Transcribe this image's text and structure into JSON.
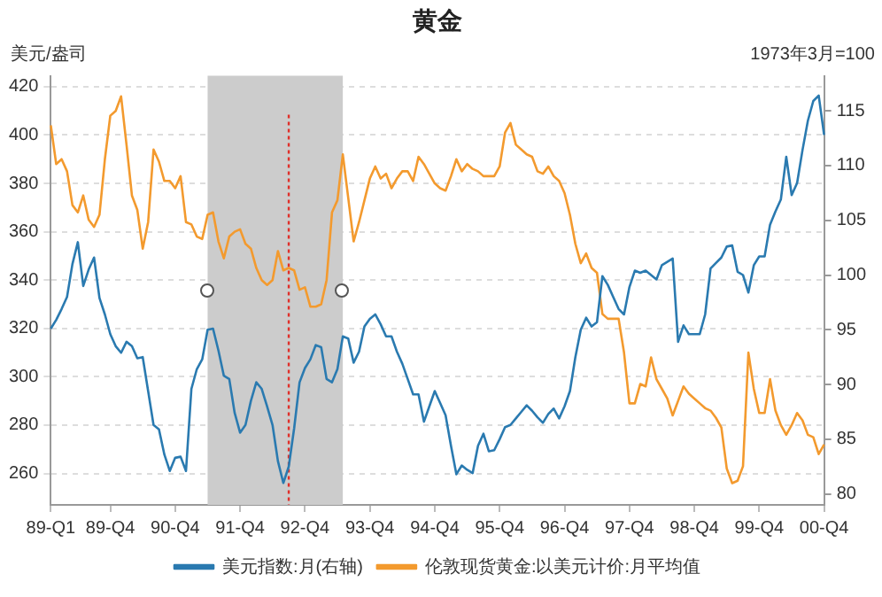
{
  "chart_data": {
    "type": "line",
    "title": "黄金",
    "ylabel": "美元/盎司",
    "y2label": "1973年3月=100",
    "categories": [
      "89-Q1",
      null,
      null,
      null,
      null,
      null,
      null,
      null,
      null,
      null,
      null,
      "89-Q4",
      null,
      null,
      null,
      null,
      null,
      null,
      null,
      null,
      null,
      null,
      null,
      "90-Q4",
      null,
      null,
      null,
      null,
      null,
      null,
      null,
      null,
      null,
      null,
      null,
      "91-Q4",
      null,
      null,
      null,
      null,
      null,
      null,
      null,
      null,
      null,
      null,
      null,
      "92-Q4",
      null,
      null,
      null,
      null,
      null,
      null,
      null,
      null,
      null,
      null,
      null,
      "93-Q4",
      null,
      null,
      null,
      null,
      null,
      null,
      null,
      null,
      null,
      null,
      null,
      "94-Q4",
      null,
      null,
      null,
      null,
      null,
      null,
      null,
      null,
      null,
      null,
      null,
      "95-Q4",
      null,
      null,
      null,
      null,
      null,
      null,
      null,
      null,
      null,
      null,
      null,
      "96-Q4",
      null,
      null,
      null,
      null,
      null,
      null,
      null,
      null,
      null,
      null,
      null,
      "97-Q4",
      null,
      null,
      null,
      null,
      null,
      null,
      null,
      null,
      null,
      null,
      null,
      "98-Q4",
      null,
      null,
      null,
      null,
      null,
      null,
      null,
      null,
      null,
      null,
      null,
      "99-Q4",
      null,
      null,
      null,
      null,
      null,
      null,
      null,
      null,
      null,
      null,
      null,
      "00-Q4"
    ],
    "ylim": [
      247,
      424.5
    ],
    "yticks": [
      260,
      280,
      300,
      320,
      340,
      360,
      380,
      400,
      420
    ],
    "y2lim": [
      79,
      118.2
    ],
    "y2ticks": [
      80,
      85,
      90,
      95,
      100,
      105,
      110,
      115
    ],
    "series": [
      {
        "name": "美元指数:月(右轴)",
        "color": "#2a7ab0",
        "axis": "y2",
        "values": [
          95.1,
          95.9,
          96.9,
          98,
          101,
          103,
          99,
          100.5,
          101.6,
          97.9,
          96.4,
          94.6,
          93.5,
          92.9,
          93.9,
          93.5,
          92.4,
          92.5,
          89.4,
          86.3,
          85.9,
          83.6,
          82.1,
          83.3,
          83.4,
          82.1,
          89.6,
          91.4,
          92.3,
          95,
          95.1,
          93.1,
          90.8,
          90.5,
          87.4,
          85.6,
          86.3,
          88.5,
          90.2,
          89.6,
          88,
          86.3,
          83,
          81,
          82.5,
          86,
          90.2,
          91.5,
          92.3,
          93.6,
          93.4,
          90.5,
          90.2,
          91.4,
          94.4,
          94.2,
          92,
          93,
          95.3,
          96,
          96.4,
          95.5,
          94.4,
          94.4,
          93,
          91.9,
          90.5,
          89.1,
          89.1,
          86.6,
          88,
          89.4,
          88.3,
          87.2,
          84.4,
          81.8,
          82.6,
          82.2,
          81.9,
          84.4,
          85.5,
          83.9,
          84,
          85,
          86.1,
          86.3,
          86.9,
          87.5,
          88.1,
          87.6,
          87,
          86.5,
          87.3,
          87.8,
          86.9,
          88,
          89.4,
          92.5,
          95,
          96.1,
          95.3,
          95.7,
          99.9,
          99.1,
          98,
          96.9,
          96.4,
          98.9,
          100.4,
          100.2,
          100.4,
          100,
          99.6,
          100.9,
          101.2,
          101.5,
          93.9,
          95.4,
          94.6,
          94.6,
          94.6,
          96.4,
          100.6,
          101.1,
          101.6,
          102.6,
          102.7,
          100.3,
          100,
          98.4,
          100.9,
          101.7,
          101.7,
          104.6,
          105.8,
          106.9,
          110.8,
          107.3,
          108.4,
          111.4,
          114.1,
          115.9,
          116.4,
          112.8
        ]
      },
      {
        "name": "伦敦现货黄金:以美元计价:月平均值",
        "color": "#f39a2e",
        "values": [
          404,
          388,
          390,
          385,
          371,
          368,
          375,
          365,
          362,
          367,
          390,
          408,
          410,
          416,
          396,
          375,
          369,
          353,
          364,
          394,
          389,
          381,
          381,
          378,
          383,
          364,
          363,
          358,
          357,
          367,
          368,
          356,
          349,
          358,
          360,
          361,
          355,
          353,
          345,
          340,
          338,
          340,
          352,
          344,
          345,
          344,
          336,
          337,
          329,
          329,
          330,
          340,
          368,
          373,
          392,
          374,
          356,
          364,
          373,
          382,
          387,
          382,
          384,
          378,
          382,
          385,
          385,
          381,
          391,
          388,
          384,
          380,
          378,
          377,
          383,
          390,
          385,
          388,
          386,
          385,
          383,
          383,
          383,
          387,
          401,
          405,
          396,
          394,
          392,
          391,
          385,
          384,
          387,
          383,
          381,
          376,
          367,
          355,
          347,
          351,
          345,
          343,
          326,
          324,
          324,
          324,
          310,
          289,
          289,
          297,
          296,
          308,
          299,
          295,
          291,
          284,
          290,
          296,
          293,
          291,
          289,
          287,
          286,
          283,
          279,
          262,
          256,
          257,
          263,
          310,
          295,
          285,
          285,
          299,
          286,
          280,
          276,
          280,
          285,
          282,
          276,
          275,
          268,
          272
        ]
      }
    ],
    "grid": "y",
    "legend": "bottom",
    "marker": "none",
    "line_style": "solid"
  }
}
